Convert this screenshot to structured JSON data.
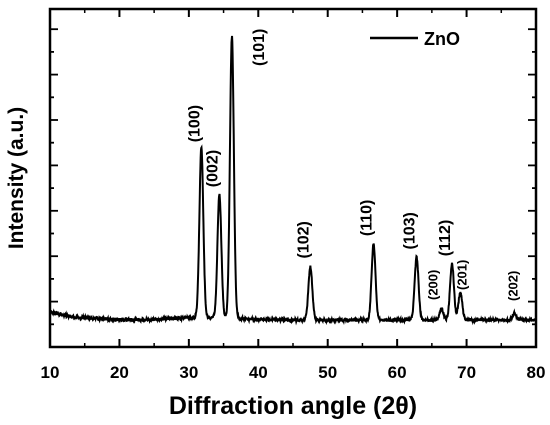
{
  "chart_data": {
    "type": "line",
    "xlabel": "Diffraction angle (2θ)",
    "ylabel": "Intensity (a.u.)",
    "xlim": [
      10,
      80
    ],
    "xticks": [
      "10",
      "20",
      "30",
      "40",
      "50",
      "60",
      "70",
      "80"
    ],
    "y_tick_labels_shown": false,
    "legend": {
      "position": "top-right",
      "entries": [
        "ZnO"
      ]
    },
    "grid": false,
    "series": [
      {
        "name": "ZnO",
        "color": "#000000",
        "baseline": 2.0,
        "peaks": [
          {
            "label": "(100)",
            "x": 31.8,
            "y": 40.0
          },
          {
            "label": "(002)",
            "x": 34.4,
            "y": 29.5
          },
          {
            "label": "(101)",
            "x": 36.2,
            "y": 65.0
          },
          {
            "label": "(102)",
            "x": 47.5,
            "y": 14.0
          },
          {
            "label": "(110)",
            "x": 56.6,
            "y": 19.0
          },
          {
            "label": "(103)",
            "x": 62.8,
            "y": 16.0
          },
          {
            "label": "(200)",
            "x": 66.4,
            "y": 4.5
          },
          {
            "label": "(112)",
            "x": 67.9,
            "y": 14.5
          },
          {
            "label": "(201)",
            "x": 69.1,
            "y": 8.0
          },
          {
            "label": "(202)",
            "x": 76.9,
            "y": 3.5
          }
        ]
      }
    ]
  }
}
